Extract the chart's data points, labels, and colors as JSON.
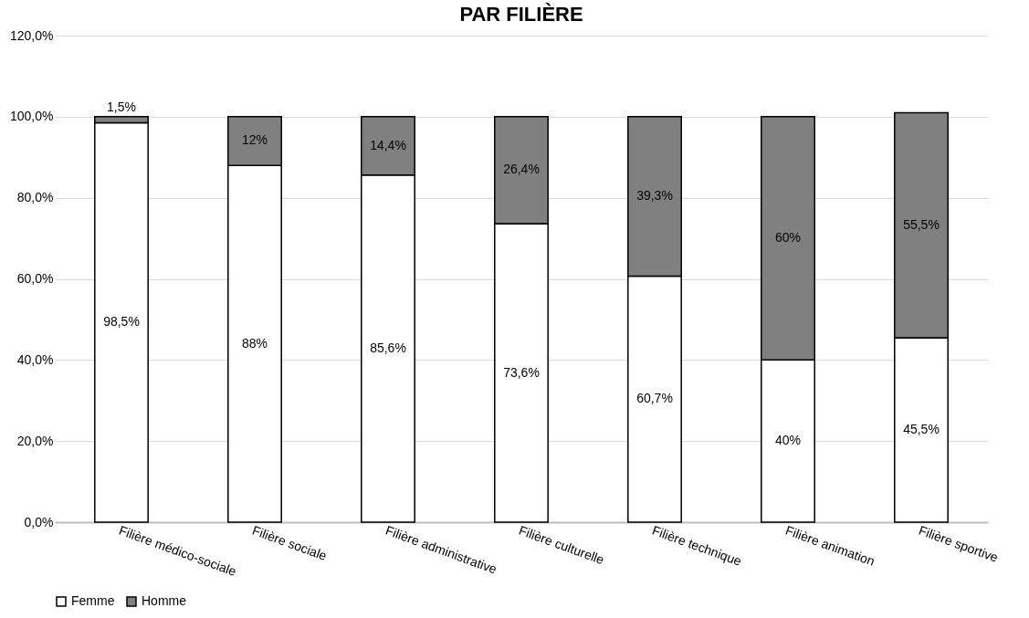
{
  "chart_data": {
    "type": "bar",
    "title": "PAR FILIÈRE",
    "categories": [
      "Filière médico-sociale",
      "Filière sociale",
      "Filière administrative",
      "Filière culturelle",
      "Filière technique",
      "Filière animation",
      "Filière sportive"
    ],
    "stacked": true,
    "series": [
      {
        "name": "Femme",
        "color": "#ffffff",
        "values": [
          98.5,
          88,
          85.6,
          73.6,
          60.7,
          40,
          45.5
        ],
        "value_labels": [
          "98,5%",
          "88%",
          "85,6%",
          "73,6%",
          "60,7%",
          "40%",
          "45,5%"
        ]
      },
      {
        "name": "Homme",
        "color": "#808080",
        "values": [
          1.5,
          12,
          14.4,
          26.4,
          39.3,
          60,
          55.5
        ],
        "value_labels": [
          "1,5%",
          "12%",
          "14,4%",
          "26,4%",
          "39,3%",
          "60%",
          "55,5%"
        ]
      }
    ],
    "ylim": [
      0,
      120
    ],
    "yticks": [
      {
        "value": 0,
        "label": "0,0%"
      },
      {
        "value": 20,
        "label": "20,0%"
      },
      {
        "value": 40,
        "label": "40,0%"
      },
      {
        "value": 60,
        "label": "60,0%"
      },
      {
        "value": 80,
        "label": "80,0%"
      },
      {
        "value": 100,
        "label": "100,0%"
      },
      {
        "value": 120,
        "label": "120,0%"
      }
    ],
    "grid": "y",
    "legend": "bottom"
  }
}
